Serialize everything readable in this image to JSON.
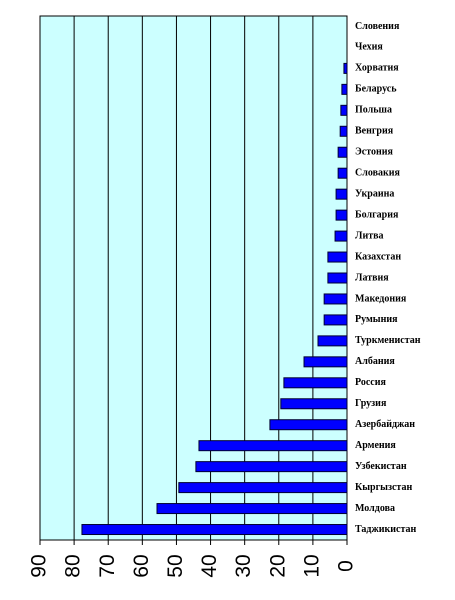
{
  "chart_data": {
    "type": "bar",
    "orientation": "horizontal",
    "xaxis_reversed": true,
    "categories": [
      "Словения",
      "Чехия",
      "Хорватия",
      "Беларусь",
      "Польша",
      "Венгрия",
      "Эстония",
      "Словакия",
      "Украина",
      "Болгария",
      "Литва",
      "Казахстан",
      "Латвия",
      "Македония",
      "Румыния",
      "Туркменистан",
      "Албания",
      "Россия",
      "Грузия",
      "Азербайджан",
      "Армения",
      "Узбекистан",
      "Кыргызстан",
      "Молдова",
      "Таджикистан"
    ],
    "values": [
      0,
      0,
      0.9,
      1.5,
      1.8,
      2,
      2.6,
      2.6,
      3.2,
      3.2,
      3.5,
      5.6,
      5.6,
      6.7,
      6.7,
      8.5,
      12.6,
      18.5,
      19.4,
      22.6,
      43.4,
      44.3,
      49.3,
      55.7,
      77.7
    ],
    "color": "#0000ff",
    "background": "#ccffff",
    "grid": true,
    "xlim": [
      0,
      90
    ],
    "xticks": [
      0,
      10,
      20,
      30,
      40,
      50,
      60,
      70,
      80,
      90
    ]
  }
}
